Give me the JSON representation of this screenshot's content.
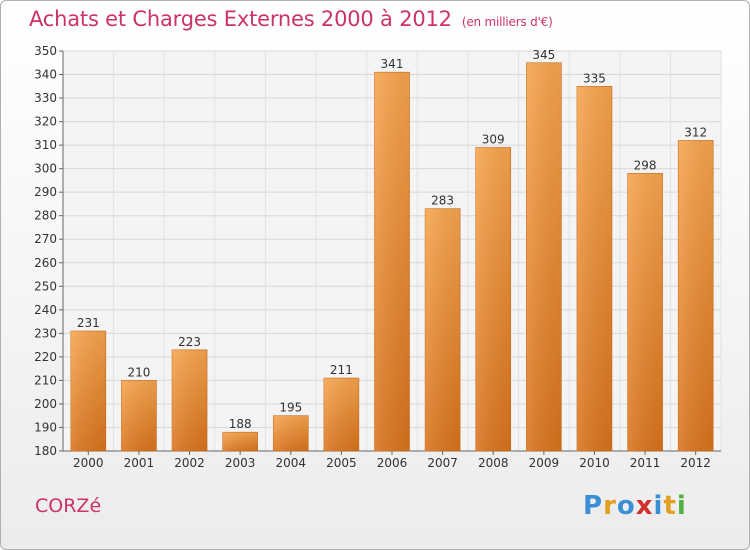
{
  "header": {
    "title": "Achats et Charges Externes 2000 à 2012",
    "subtitle": "(en milliers d'€)"
  },
  "footer": {
    "commune": "CORZé",
    "logo_letters": [
      "P",
      "r",
      "o",
      "x",
      "i",
      "t",
      "i"
    ],
    "logo_colors": [
      "#3a8fd6",
      "#e0a020",
      "#3a8fd6",
      "#d03030",
      "#3a8fd6",
      "#e0a020",
      "#50b040"
    ]
  },
  "chart_data": {
    "type": "bar",
    "title": "Achats et Charges Externes 2000 à 2012",
    "subtitle": "(en milliers d'€)",
    "categories": [
      "2000",
      "2001",
      "2002",
      "2003",
      "2004",
      "2005",
      "2006",
      "2007",
      "2008",
      "2009",
      "2010",
      "2011",
      "2012"
    ],
    "values": [
      231,
      210,
      223,
      188,
      195,
      211,
      341,
      283,
      309,
      345,
      335,
      298,
      312
    ],
    "ylim": [
      180,
      350
    ],
    "yticks": [
      180,
      190,
      200,
      210,
      220,
      230,
      240,
      250,
      260,
      270,
      280,
      290,
      300,
      310,
      320,
      330,
      340,
      350
    ],
    "xlabel": "",
    "ylabel": "",
    "grid": true,
    "bar_color": "#f0922e",
    "title_color": "#cc3366"
  }
}
